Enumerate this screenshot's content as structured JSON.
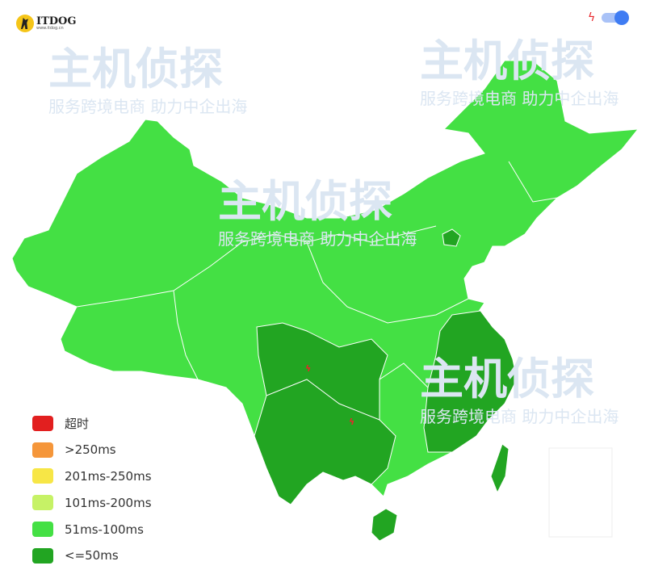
{
  "logo": {
    "title": "ITDOG",
    "url": "www.itdog.cn"
  },
  "watermark": {
    "brand": "主机侦探",
    "slogan": "服务跨境电商 助力中企出海"
  },
  "toggle": {
    "icon": "lightning-icon",
    "state": "on",
    "color": "#3f7cf3"
  },
  "legend": [
    {
      "label": "超时",
      "color": "#e21f1f"
    },
    {
      "label": ">250ms",
      "color": "#f5963a"
    },
    {
      "label": "201ms-250ms",
      "color": "#f7e646"
    },
    {
      "label": "101ms-200ms",
      "color": "#c6f266"
    },
    {
      "label": "51ms-100ms",
      "color": "#44e044"
    },
    {
      "label": "<=50ms",
      "color": "#22a522"
    }
  ],
  "map": {
    "default_category": "51ms-100ms",
    "regions_le_50ms": [
      "四川",
      "重庆",
      "贵州",
      "云南",
      "广西",
      "江西",
      "福建",
      "浙江",
      "江苏",
      "北京",
      "海南",
      "台湾"
    ],
    "markers": [
      "lightning-icon",
      "lightning-icon"
    ]
  }
}
